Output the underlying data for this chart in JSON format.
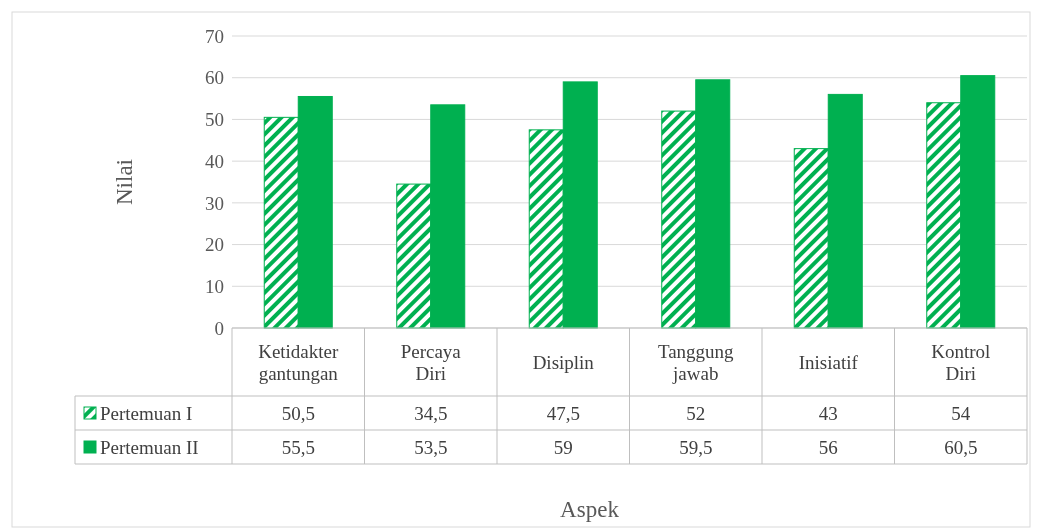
{
  "chart_data": {
    "type": "bar",
    "xlabel": "Aspek",
    "ylabel": "Nilai",
    "categories": [
      "Ketidakter gantungan",
      "Percaya Diri",
      "Disiplin",
      "Tanggung jawab",
      "Inisiatif",
      "Kontrol Diri"
    ],
    "series": [
      {
        "name": "Pertemuan I",
        "color": "#00b050",
        "values": [
          50.5,
          34.5,
          47.5,
          52,
          43,
          54
        ],
        "value_labels": [
          "50,5",
          "34,5",
          "47,5",
          "52",
          "43",
          "54"
        ]
      },
      {
        "name": "Pertemuan II",
        "color": "#00b050",
        "values": [
          55.5,
          53.5,
          59,
          59.5,
          56,
          60.5
        ],
        "value_labels": [
          "55,5",
          "53,5",
          "59",
          "59,5",
          "56",
          "60,5"
        ]
      }
    ],
    "ylim": [
      0,
      70
    ],
    "yticks": [
      0,
      10,
      20,
      30,
      40,
      50,
      60,
      70
    ],
    "grid": "y",
    "legend": "bottom"
  }
}
